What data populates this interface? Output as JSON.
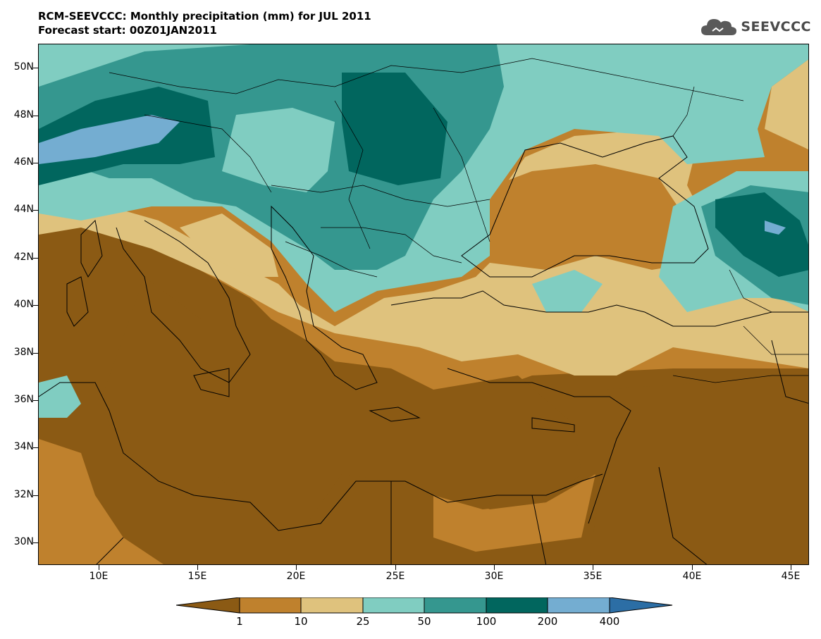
{
  "header": {
    "title_line1": "RCM-SEEVCCC: Monthly precipitation (mm) for JUL 2011",
    "title_line2": "Forecast start: 00Z01JAN2011",
    "logo_text": "SEEVCCC"
  },
  "map": {
    "lat_labels": [
      "50N",
      "48N",
      "46N",
      "44N",
      "42N",
      "40N",
      "38N",
      "36N",
      "34N",
      "32N",
      "30N"
    ],
    "lon_labels": [
      "10E",
      "15E",
      "20E",
      "25E",
      "30E",
      "35E",
      "40E",
      "45E"
    ]
  },
  "colorbar": {
    "labels": [
      "1",
      "10",
      "25",
      "50",
      "100",
      "200",
      "400"
    ],
    "colors": [
      "#8b5a14",
      "#bf812d",
      "#dfc27d",
      "#80cdc1",
      "#35978f",
      "#01665e",
      "#74add1",
      "#2c6ea5"
    ]
  }
}
